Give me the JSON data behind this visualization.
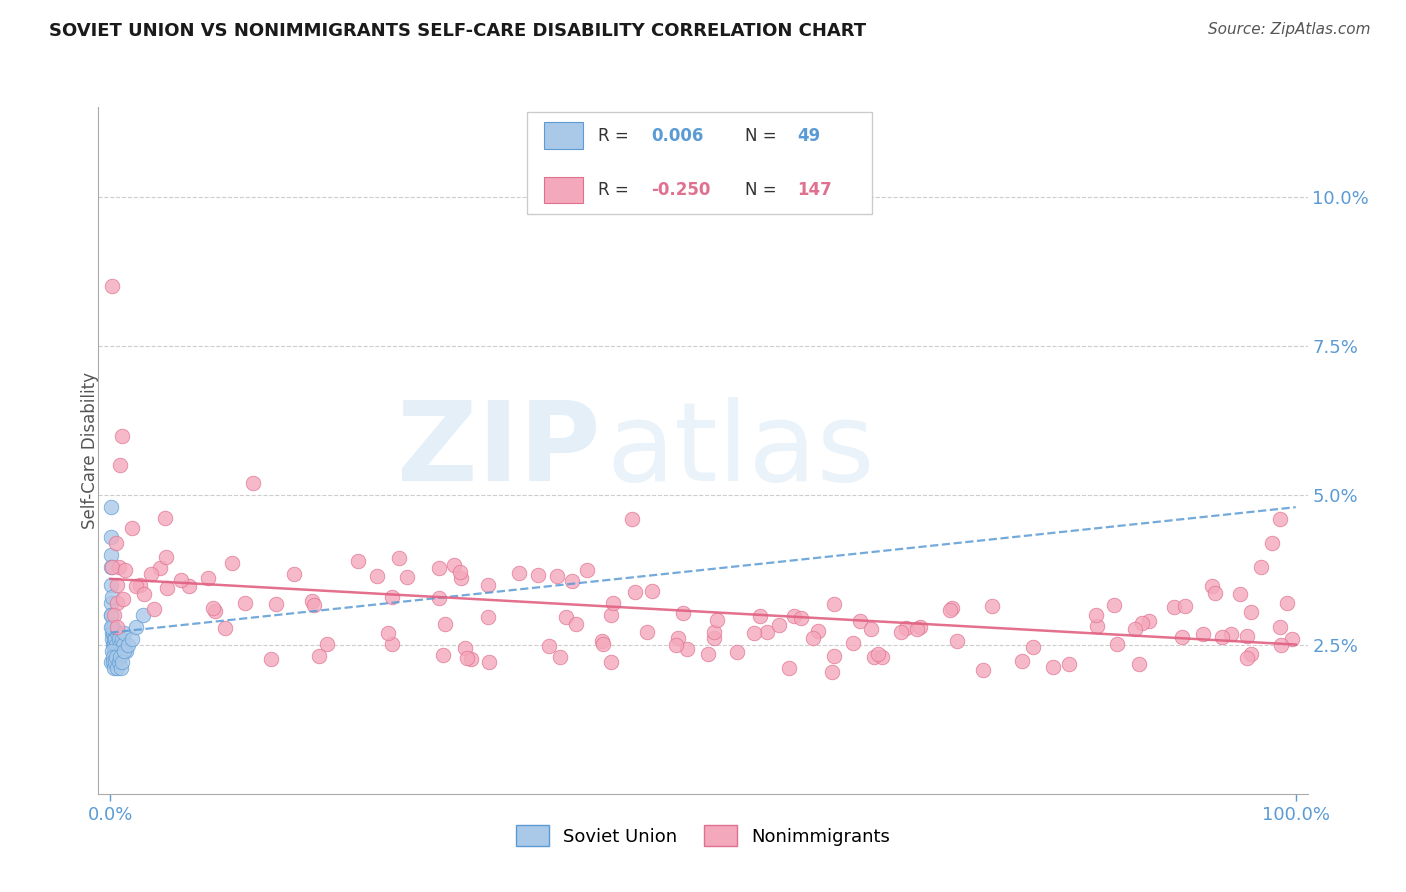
{
  "title": "SOVIET UNION VS NONIMMIGRANTS SELF-CARE DISABILITY CORRELATION CHART",
  "source": "Source: ZipAtlas.com",
  "ylabel": "Self-Care Disability",
  "watermark_zip": "ZIP",
  "watermark_atlas": "atlas",
  "xlim": [
    -0.01,
    1.01
  ],
  "ylim": [
    0.0,
    0.115
  ],
  "yticks": [
    0.025,
    0.05,
    0.075,
    0.1
  ],
  "ytick_labels": [
    "2.5%",
    "5.0%",
    "7.5%",
    "10.0%"
  ],
  "xtick_labels": [
    "0.0%",
    "100.0%"
  ],
  "axis_color": "#5b9bd5",
  "grid_color": "#c8c8c8",
  "background_color": "#ffffff",
  "soviet_color": "#aac9e8",
  "soviet_edge_color": "#5b9bd5",
  "nonimm_color": "#f4a8bc",
  "nonimm_edge_color": "#e07090",
  "trend_blue_color": "#5b9bd5",
  "trend_pink_color": "#e06080",
  "legend_R1": "0.006",
  "legend_N1": "49",
  "legend_R2": "-0.250",
  "legend_N2": "147",
  "trend_blue_start": 0.027,
  "trend_blue_end": 0.048,
  "trend_pink_start": 0.036,
  "trend_pink_end": 0.025
}
